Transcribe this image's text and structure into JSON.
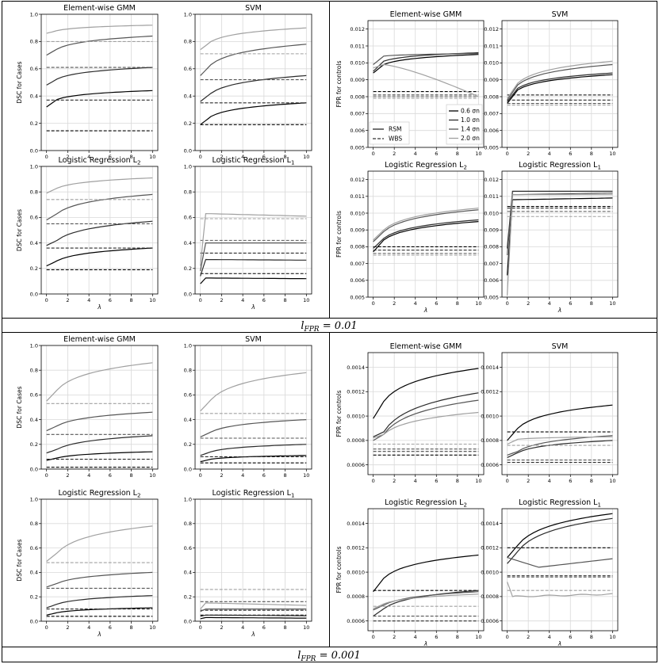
{
  "captions": {
    "top": "l_FPR = 0.01",
    "bottom": "l_FPR = 0.001"
  },
  "line_colors": {
    "0.6": "#000000",
    "1.0": "#2b2b2b",
    "1.4": "#555555",
    "2.0": "#a0a0a0"
  },
  "legend_top": {
    "sigma_entries": [
      "0.6 σn",
      "1.0 σn",
      "1.4 σn",
      "2.0 σn"
    ],
    "method_entries": [
      "RSM",
      "WBS"
    ]
  },
  "chart_data": [
    {
      "id": "top-dsc-gmm",
      "type": "line",
      "title": "Element-wise GMM",
      "xlabel": "",
      "ylabel": "DSC for Cases",
      "ylim": [
        0,
        1.0
      ],
      "yticks": [
        "0.0",
        "0.2",
        "0.4",
        "0.6",
        "0.8",
        "1.0"
      ],
      "xlim": [
        -0.5,
        10.5
      ],
      "xticks": [
        "0",
        "2",
        "4",
        "6",
        "8",
        "10"
      ],
      "series": [
        {
          "shape": "curve",
          "sigma": "0.6",
          "y0": 0.32,
          "y1": 0.375,
          "yend": 0.44,
          "wbs": 0.145
        },
        {
          "shape": "curve",
          "sigma": "1.0",
          "y0": 0.48,
          "y1": 0.525,
          "yend": 0.61,
          "wbs": 0.37
        },
        {
          "shape": "curve",
          "sigma": "1.4",
          "y0": 0.7,
          "y1": 0.745,
          "yend": 0.84,
          "wbs": 0.61
        },
        {
          "shape": "curve",
          "sigma": "2.0",
          "y0": 0.86,
          "y1": 0.88,
          "yend": 0.92,
          "wbs": 0.8
        }
      ]
    },
    {
      "id": "top-dsc-svm",
      "type": "line",
      "title": "SVM",
      "xlabel": "",
      "ylabel": "",
      "ylim": [
        0,
        1.0
      ],
      "yticks": [
        "0.0",
        "0.2",
        "0.4",
        "0.6",
        "0.8",
        "1.0"
      ],
      "xlim": [
        -0.5,
        10.5
      ],
      "xticks": [
        "0",
        "2",
        "4",
        "6",
        "8",
        "10"
      ],
      "series": [
        {
          "shape": "curve",
          "sigma": "0.6",
          "y0": 0.19,
          "y1": 0.25,
          "yend": 0.35,
          "wbs": 0.19
        },
        {
          "shape": "curve",
          "sigma": "1.0",
          "y0": 0.36,
          "y1": 0.42,
          "yend": 0.55,
          "wbs": 0.35
        },
        {
          "shape": "curve",
          "sigma": "1.4",
          "y0": 0.55,
          "y1": 0.63,
          "yend": 0.78,
          "wbs": 0.52
        },
        {
          "shape": "curve",
          "sigma": "2.0",
          "y0": 0.74,
          "y1": 0.8,
          "yend": 0.9,
          "wbs": 0.71
        }
      ]
    },
    {
      "id": "top-dsc-l2",
      "type": "line",
      "title": "Logistic Regression L2",
      "xlabel": "λ",
      "ylabel": "DSC for Cases",
      "ylim": [
        0,
        1.0
      ],
      "yticks": [
        "0.0",
        "0.2",
        "0.4",
        "0.6",
        "0.8",
        "1.0"
      ],
      "xlim": [
        -0.5,
        10.5
      ],
      "xticks": [
        "0",
        "2",
        "4",
        "6",
        "8",
        "10"
      ],
      "series": [
        {
          "shape": "curve",
          "sigma": "0.6",
          "y0": 0.22,
          "y1": 0.26,
          "yend": 0.36,
          "wbs": 0.19
        },
        {
          "shape": "curve",
          "sigma": "1.0",
          "y0": 0.38,
          "y1": 0.42,
          "yend": 0.57,
          "wbs": 0.36
        },
        {
          "shape": "curve",
          "sigma": "1.4",
          "y0": 0.58,
          "y1": 0.63,
          "yend": 0.78,
          "wbs": 0.55
        },
        {
          "shape": "curve",
          "sigma": "2.0",
          "y0": 0.79,
          "y1": 0.83,
          "yend": 0.91,
          "wbs": 0.74
        }
      ]
    },
    {
      "id": "top-dsc-l1",
      "type": "line",
      "title": "Logistic Regression L1",
      "xlabel": "λ",
      "ylabel": "",
      "ylim": [
        0,
        1.0
      ],
      "yticks": [
        "0.0",
        "0.2",
        "0.4",
        "0.6",
        "0.8",
        "1.0"
      ],
      "xlim": [
        -0.5,
        10.5
      ],
      "xticks": [
        "0",
        "2",
        "4",
        "6",
        "8",
        "10"
      ],
      "series": [
        {
          "shape": "jump",
          "sigma": "0.6",
          "y0": 0.08,
          "yplat": 0.125,
          "yend": 0.12,
          "wbs": 0.16
        },
        {
          "shape": "jump",
          "sigma": "1.0",
          "y0": 0.14,
          "yplat": 0.27,
          "yend": 0.265,
          "wbs": 0.32
        },
        {
          "shape": "jump",
          "sigma": "1.4",
          "y0": 0.18,
          "yplat": 0.4,
          "yend": 0.4,
          "wbs": 0.42
        },
        {
          "shape": "jump",
          "sigma": "2.0",
          "y0": 0.22,
          "yplat": 0.63,
          "yend": 0.61,
          "wbs": 0.59
        }
      ]
    },
    {
      "id": "top-fpr-gmm",
      "type": "line",
      "title": "Element-wise GMM",
      "xlabel": "",
      "ylabel": "FPR for controls",
      "ylim": [
        0.005,
        0.0125
      ],
      "yticks": [
        "0.005",
        "0.006",
        "0.007",
        "0.008",
        "0.009",
        "0.010",
        "0.011",
        "0.012"
      ],
      "xlim": [
        -0.5,
        10.5
      ],
      "xticks": [
        "0",
        "2",
        "4",
        "6",
        "8",
        "10"
      ],
      "series": [
        {
          "shape": "curve",
          "sigma": "0.6",
          "y0": 0.0094,
          "y1": 0.0099,
          "yend": 0.0105,
          "wbs": 0.0083
        },
        {
          "shape": "curve",
          "sigma": "1.0",
          "y0": 0.0095,
          "y1": 0.0101,
          "yend": 0.0106,
          "wbs": 0.0081
        },
        {
          "shape": "curve",
          "sigma": "1.4",
          "y0": 0.0099,
          "y1": 0.0104,
          "yend": 0.01055,
          "wbs": 0.008
        },
        {
          "shape": "hump",
          "sigma": "2.0",
          "y0": 0.0097,
          "y1": 0.0098,
          "yend": 0.008,
          "wbs": 0.0079
        }
      ]
    },
    {
      "id": "top-fpr-svm",
      "type": "line",
      "title": "SVM",
      "xlabel": "",
      "ylabel": "",
      "ylim": [
        0.005,
        0.0125
      ],
      "yticks": [
        "0.005",
        "0.006",
        "0.007",
        "0.008",
        "0.009",
        "0.010",
        "0.011",
        "0.012"
      ],
      "xlim": [
        -0.5,
        10.5
      ],
      "xticks": [
        "0",
        "2",
        "4",
        "6",
        "8",
        "10"
      ],
      "series": [
        {
          "shape": "curve",
          "sigma": "0.6",
          "y0": 0.0076,
          "y1": 0.0084,
          "yend": 0.0093,
          "wbs": 0.0081
        },
        {
          "shape": "curve",
          "sigma": "1.0",
          "y0": 0.0077,
          "y1": 0.0085,
          "yend": 0.0094,
          "wbs": 0.0078
        },
        {
          "shape": "curve",
          "sigma": "1.4",
          "y0": 0.0078,
          "y1": 0.0087,
          "yend": 0.0099,
          "wbs": 0.0076
        },
        {
          "shape": "curve",
          "sigma": "2.0",
          "y0": 0.0079,
          "y1": 0.0088,
          "yend": 0.0101,
          "wbs": 0.0075
        }
      ]
    },
    {
      "id": "top-fpr-l2",
      "type": "line",
      "title": "Logistic Regression L2",
      "xlabel": "λ",
      "ylabel": "FPR for controls",
      "ylim": [
        0.005,
        0.0125
      ],
      "yticks": [
        "0.005",
        "0.006",
        "0.007",
        "0.008",
        "0.009",
        "0.010",
        "0.011",
        "0.012"
      ],
      "xlim": [
        -0.5,
        10.5
      ],
      "xticks": [
        "0",
        "2",
        "4",
        "6",
        "8",
        "10"
      ],
      "series": [
        {
          "shape": "curve",
          "sigma": "0.6",
          "y0": 0.0077,
          "y1": 0.0084,
          "yend": 0.0095,
          "wbs": 0.008
        },
        {
          "shape": "curve",
          "sigma": "1.0",
          "y0": 0.0079,
          "y1": 0.0085,
          "yend": 0.0096,
          "wbs": 0.0078
        },
        {
          "shape": "curve",
          "sigma": "1.4",
          "y0": 0.0083,
          "y1": 0.0089,
          "yend": 0.0102,
          "wbs": 0.0076
        },
        {
          "shape": "curve",
          "sigma": "2.0",
          "y0": 0.0084,
          "y1": 0.009,
          "yend": 0.0103,
          "wbs": 0.0075
        }
      ]
    },
    {
      "id": "top-fpr-l1",
      "type": "line",
      "title": "Logistic Regression L1",
      "xlabel": "λ",
      "ylabel": "",
      "ylim": [
        0.005,
        0.0125
      ],
      "yticks": [
        "0.005",
        "0.006",
        "0.007",
        "0.008",
        "0.009",
        "0.010",
        "0.011",
        "0.012"
      ],
      "xlim": [
        -0.5,
        10.5
      ],
      "xticks": [
        "0",
        "2",
        "4",
        "6",
        "8",
        "10"
      ],
      "series": [
        {
          "shape": "jump",
          "sigma": "0.6",
          "y0": 0.0063,
          "yplat": 0.0108,
          "yend": 0.0109,
          "wbs": 0.0104
        },
        {
          "shape": "jump",
          "sigma": "1.0",
          "y0": 0.0079,
          "yplat": 0.0113,
          "yend": 0.0113,
          "wbs": 0.0103
        },
        {
          "shape": "jump",
          "sigma": "1.4",
          "y0": 0.0075,
          "yplat": 0.0111,
          "yend": 0.0112,
          "wbs": 0.0101
        },
        {
          "shape": "jump",
          "sigma": "2.0",
          "y0": 0.0051,
          "yplat": 0.0111,
          "yend": 0.0111,
          "wbs": 0.0098
        }
      ]
    },
    {
      "id": "bot-dsc-gmm",
      "type": "line",
      "title": "Element-wise GMM",
      "xlabel": "",
      "ylabel": "DSC for Cases",
      "ylim": [
        0,
        1.0
      ],
      "yticks": [
        "0.0",
        "0.2",
        "0.4",
        "0.6",
        "0.8",
        "1.0"
      ],
      "xlim": [
        -0.5,
        10.5
      ],
      "xticks": [
        "0",
        "2",
        "4",
        "6",
        "8",
        "10"
      ],
      "series": [
        {
          "shape": "curve",
          "sigma": "0.6",
          "y0": 0.07,
          "y1": 0.09,
          "yend": 0.14,
          "wbs": 0.015
        },
        {
          "shape": "curve",
          "sigma": "1.0",
          "y0": 0.13,
          "y1": 0.16,
          "yend": 0.27,
          "wbs": 0.08
        },
        {
          "shape": "curve",
          "sigma": "1.4",
          "y0": 0.31,
          "y1": 0.35,
          "yend": 0.46,
          "wbs": 0.28
        },
        {
          "shape": "curve",
          "sigma": "2.0",
          "y0": 0.55,
          "y1": 0.64,
          "yend": 0.86,
          "wbs": 0.53
        }
      ]
    },
    {
      "id": "bot-dsc-svm",
      "type": "line",
      "title": "SVM",
      "xlabel": "",
      "ylabel": "",
      "ylim": [
        0,
        1.0
      ],
      "yticks": [
        "0.0",
        "0.2",
        "0.4",
        "0.6",
        "0.8",
        "1.0"
      ],
      "xlim": [
        -0.5,
        10.5
      ],
      "xticks": [
        "0",
        "2",
        "4",
        "6",
        "8",
        "10"
      ],
      "series": [
        {
          "shape": "curve",
          "sigma": "0.6",
          "y0": 0.06,
          "y1": 0.08,
          "yend": 0.11,
          "wbs": 0.05
        },
        {
          "shape": "curve",
          "sigma": "1.0",
          "y0": 0.11,
          "y1": 0.14,
          "yend": 0.2,
          "wbs": 0.1
        },
        {
          "shape": "curve",
          "sigma": "1.4",
          "y0": 0.26,
          "y1": 0.3,
          "yend": 0.4,
          "wbs": 0.25
        },
        {
          "shape": "curve",
          "sigma": "2.0",
          "y0": 0.47,
          "y1": 0.56,
          "yend": 0.78,
          "wbs": 0.45
        }
      ]
    },
    {
      "id": "bot-dsc-l2",
      "type": "line",
      "title": "Logistic Regression L2",
      "xlabel": "λ",
      "ylabel": "DSC for Cases",
      "ylim": [
        0,
        1.0
      ],
      "yticks": [
        "0.0",
        "0.2",
        "0.4",
        "0.6",
        "0.8",
        "1.0"
      ],
      "xlim": [
        -0.5,
        10.5
      ],
      "xticks": [
        "0",
        "2",
        "4",
        "6",
        "8",
        "10"
      ],
      "series": [
        {
          "shape": "curve",
          "sigma": "0.6",
          "y0": 0.05,
          "y1": 0.07,
          "yend": 0.11,
          "wbs": 0.04
        },
        {
          "shape": "curve",
          "sigma": "1.0",
          "y0": 0.11,
          "y1": 0.14,
          "yend": 0.21,
          "wbs": 0.1
        },
        {
          "shape": "curve",
          "sigma": "1.4",
          "y0": 0.28,
          "y1": 0.31,
          "yend": 0.4,
          "wbs": 0.27
        },
        {
          "shape": "curve",
          "sigma": "2.0",
          "y0": 0.49,
          "y1": 0.56,
          "yend": 0.78,
          "wbs": 0.48
        }
      ]
    },
    {
      "id": "bot-dsc-l1",
      "type": "line",
      "title": "Logistic Regression L1",
      "xlabel": "λ",
      "ylabel": "",
      "ylim": [
        0,
        1.0
      ],
      "yticks": [
        "0.0",
        "0.2",
        "0.4",
        "0.6",
        "0.8",
        "1.0"
      ],
      "xlim": [
        -0.5,
        10.5
      ],
      "xticks": [
        "0",
        "2",
        "4",
        "6",
        "8",
        "10"
      ],
      "series": [
        {
          "shape": "jump",
          "sigma": "0.6",
          "y0": 0.02,
          "yplat": 0.03,
          "yend": 0.025,
          "wbs": 0.05
        },
        {
          "shape": "jump",
          "sigma": "1.0",
          "y0": 0.04,
          "yplat": 0.05,
          "yend": 0.045,
          "wbs": 0.09
        },
        {
          "shape": "jump",
          "sigma": "1.4",
          "y0": 0.08,
          "yplat": 0.1,
          "yend": 0.1,
          "wbs": 0.16
        },
        {
          "shape": "jump",
          "sigma": "2.0",
          "y0": 0.1,
          "yplat": 0.15,
          "yend": 0.13,
          "wbs": 0.26
        }
      ]
    },
    {
      "id": "bot-fpr-gmm",
      "type": "line",
      "title": "Element-wise GMM",
      "xlabel": "",
      "ylabel": "FPR for controls",
      "ylim": [
        0.00052,
        0.00152
      ],
      "yticks": [
        "0.0006",
        "0.0008",
        "0.0010",
        "0.0012",
        "0.0014"
      ],
      "xlim": [
        -0.5,
        10.5
      ],
      "xticks": [
        "0",
        "2",
        "4",
        "6",
        "8",
        "10"
      ],
      "series": [
        {
          "shape": "curve",
          "sigma": "0.6",
          "y0": 0.00098,
          "y1": 0.00112,
          "yend": 0.00139,
          "wbs": 0.00068
        },
        {
          "shape": "curve",
          "sigma": "1.0",
          "y0": 0.00083,
          "y1": 0.00087,
          "yend": 0.00119,
          "wbs": 0.00071
        },
        {
          "shape": "curve",
          "sigma": "1.4",
          "y0": 0.0008,
          "y1": 0.00085,
          "yend": 0.00113,
          "wbs": 0.00073
        },
        {
          "shape": "curve",
          "sigma": "2.0",
          "y0": 0.00082,
          "y1": 0.00085,
          "yend": 0.00103,
          "wbs": 0.00077
        }
      ]
    },
    {
      "id": "bot-fpr-svm",
      "type": "line",
      "title": "SVM",
      "xlabel": "",
      "ylabel": "",
      "ylim": [
        0.00052,
        0.00152
      ],
      "yticks": [
        "0.0006",
        "0.0008",
        "0.0010",
        "0.0012",
        "0.0014"
      ],
      "xlim": [
        -0.5,
        10.5
      ],
      "xticks": [
        "0",
        "2",
        "4",
        "6",
        "8",
        "10"
      ],
      "series": [
        {
          "shape": "curve",
          "sigma": "0.6",
          "y0": 0.0008,
          "y1": 0.0009,
          "yend": 0.00109,
          "wbs": 0.00087
        },
        {
          "shape": "curve",
          "sigma": "1.0",
          "y0": 0.00066,
          "y1": 0.0007,
          "yend": 0.0008,
          "wbs": 0.00062
        },
        {
          "shape": "curve",
          "sigma": "1.4",
          "y0": 0.00068,
          "y1": 0.00071,
          "yend": 0.00084,
          "wbs": 0.00064
        },
        {
          "shape": "curve",
          "sigma": "2.0",
          "y0": 0.00077,
          "y1": 0.00081,
          "yend": 0.00083,
          "wbs": 0.00076
        }
      ]
    },
    {
      "id": "bot-fpr-l2",
      "type": "line",
      "title": "Logistic Regression L2",
      "xlabel": "λ",
      "ylabel": "FPR for controls",
      "ylim": [
        0.00052,
        0.00152
      ],
      "yticks": [
        "0.0006",
        "0.0008",
        "0.0010",
        "0.0012",
        "0.0014"
      ],
      "xlim": [
        -0.5,
        10.5
      ],
      "xticks": [
        "0",
        "2",
        "4",
        "6",
        "8",
        "10"
      ],
      "series": [
        {
          "shape": "curve",
          "sigma": "0.6",
          "y0": 0.00084,
          "y1": 0.00095,
          "yend": 0.00114,
          "wbs": 0.00085
        },
        {
          "shape": "curve",
          "sigma": "1.0",
          "y0": 0.00064,
          "y1": 0.0007,
          "yend": 0.00085,
          "wbs": 0.0006
        },
        {
          "shape": "curve",
          "sigma": "1.4",
          "y0": 0.00069,
          "y1": 0.00073,
          "yend": 0.00084,
          "wbs": 0.00064
        },
        {
          "shape": "curve",
          "sigma": "2.0",
          "y0": 0.0007,
          "y1": 0.00074,
          "yend": 0.00082,
          "wbs": 0.00072
        }
      ]
    },
    {
      "id": "bot-fpr-l1",
      "type": "line",
      "title": "Logistic Regression L1",
      "xlabel": "λ",
      "ylabel": "",
      "ylim": [
        0.00052,
        0.00152
      ],
      "yticks": [
        "0.0006",
        "0.0008",
        "0.0010",
        "0.0012",
        "0.0014"
      ],
      "xlim": [
        -0.5,
        10.5
      ],
      "xticks": [
        "0",
        "2",
        "4",
        "6",
        "8",
        "10"
      ],
      "series": [
        {
          "shape": "curve",
          "sigma": "0.6",
          "y0": 0.00112,
          "y1": 0.00122,
          "yend": 0.00148,
          "wbs": 0.0012
        },
        {
          "shape": "curve",
          "sigma": "1.0",
          "y0": 0.00107,
          "y1": 0.00117,
          "yend": 0.00144,
          "wbs": 0.00097
        },
        {
          "shape": "valley",
          "sigma": "1.4",
          "y0": 0.00112,
          "y1": 0.00108,
          "yend": 0.00111,
          "wbs": 0.00096
        },
        {
          "shape": "dip",
          "sigma": "2.0",
          "y0": 0.00092,
          "y1": 0.0008,
          "yend": 0.00082,
          "wbs": 0.00085
        }
      ]
    }
  ]
}
